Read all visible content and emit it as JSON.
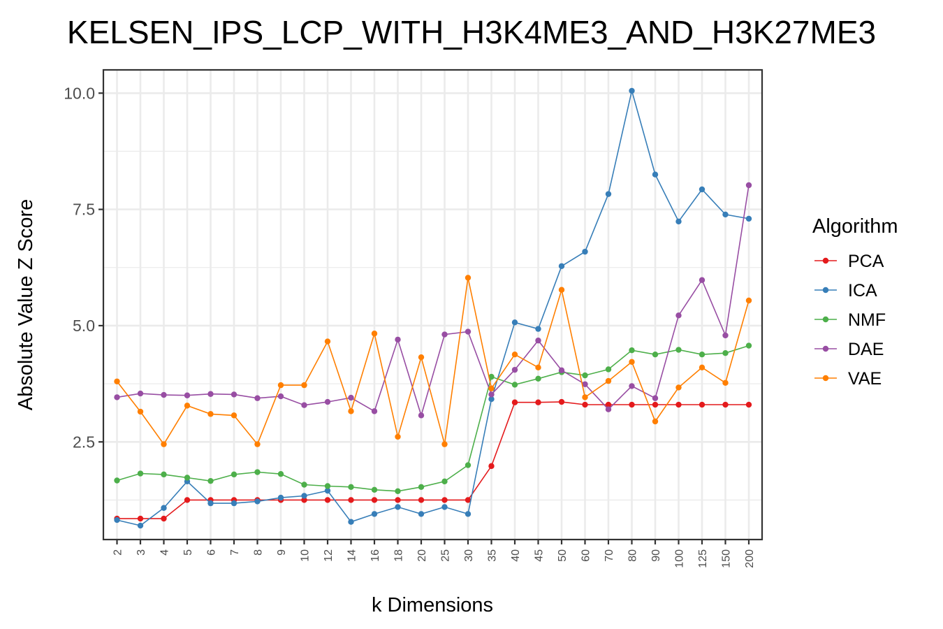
{
  "chart_data": {
    "type": "line",
    "title": "KELSEN_IPS_LCP_WITH_H3K4ME3_AND_H3K27ME3",
    "xlabel": "k Dimensions",
    "ylabel": "Absolute Value Z Score",
    "categories": [
      "2",
      "3",
      "4",
      "5",
      "6",
      "7",
      "8",
      "9",
      "10",
      "12",
      "14",
      "16",
      "18",
      "20",
      "25",
      "30",
      "35",
      "40",
      "45",
      "50",
      "60",
      "70",
      "80",
      "90",
      "100",
      "125",
      "150",
      "200"
    ],
    "ylim": [
      0.4,
      10.5
    ],
    "yticks": [
      2.5,
      5.0,
      7.5,
      10.0
    ],
    "ytick_labels": [
      "2.5",
      "5.0",
      "7.5",
      "10.0"
    ],
    "grid": true,
    "legend_title": "Algorithm",
    "legend_position": "right",
    "series": [
      {
        "name": "PCA",
        "color": "#e41a1c",
        "values": [
          0.85,
          0.85,
          0.85,
          1.25,
          1.25,
          1.25,
          1.25,
          1.25,
          1.25,
          1.25,
          1.25,
          1.25,
          1.25,
          1.25,
          1.25,
          1.25,
          1.98,
          3.35,
          3.35,
          3.36,
          3.3,
          3.3,
          3.3,
          3.3,
          3.3,
          3.3,
          3.3,
          3.3
        ]
      },
      {
        "name": "ICA",
        "color": "#377eb8",
        "values": [
          0.82,
          0.7,
          1.08,
          1.65,
          1.18,
          1.18,
          1.22,
          1.3,
          1.34,
          1.45,
          0.78,
          0.95,
          1.1,
          0.95,
          1.1,
          0.95,
          3.42,
          5.07,
          4.93,
          6.28,
          6.59,
          7.83,
          10.05,
          8.25,
          7.24,
          7.93,
          7.39,
          7.3
        ]
      },
      {
        "name": "NMF",
        "color": "#4daf4a",
        "values": [
          1.67,
          1.82,
          1.8,
          1.73,
          1.66,
          1.8,
          1.85,
          1.81,
          1.58,
          1.55,
          1.53,
          1.47,
          1.44,
          1.53,
          1.65,
          2.0,
          3.9,
          3.73,
          3.86,
          4.0,
          3.93,
          4.06,
          4.47,
          4.38,
          4.48,
          4.38,
          4.41,
          4.57
        ]
      },
      {
        "name": "DAE",
        "color": "#984ea3",
        "values": [
          3.46,
          3.54,
          3.51,
          3.5,
          3.53,
          3.52,
          3.44,
          3.48,
          3.29,
          3.36,
          3.45,
          3.16,
          4.7,
          3.07,
          4.81,
          4.87,
          3.52,
          4.05,
          4.68,
          4.04,
          3.74,
          3.2,
          3.7,
          3.44,
          5.22,
          5.98,
          4.79,
          8.02
        ]
      },
      {
        "name": "VAE",
        "color": "#ff7f00",
        "values": [
          3.8,
          3.15,
          2.45,
          3.28,
          3.1,
          3.07,
          2.45,
          3.72,
          3.72,
          4.66,
          3.16,
          4.83,
          2.61,
          4.32,
          2.45,
          6.03,
          3.65,
          4.38,
          4.1,
          5.77,
          3.46,
          3.81,
          4.22,
          2.94,
          3.67,
          4.1,
          3.77,
          5.54
        ]
      }
    ]
  }
}
